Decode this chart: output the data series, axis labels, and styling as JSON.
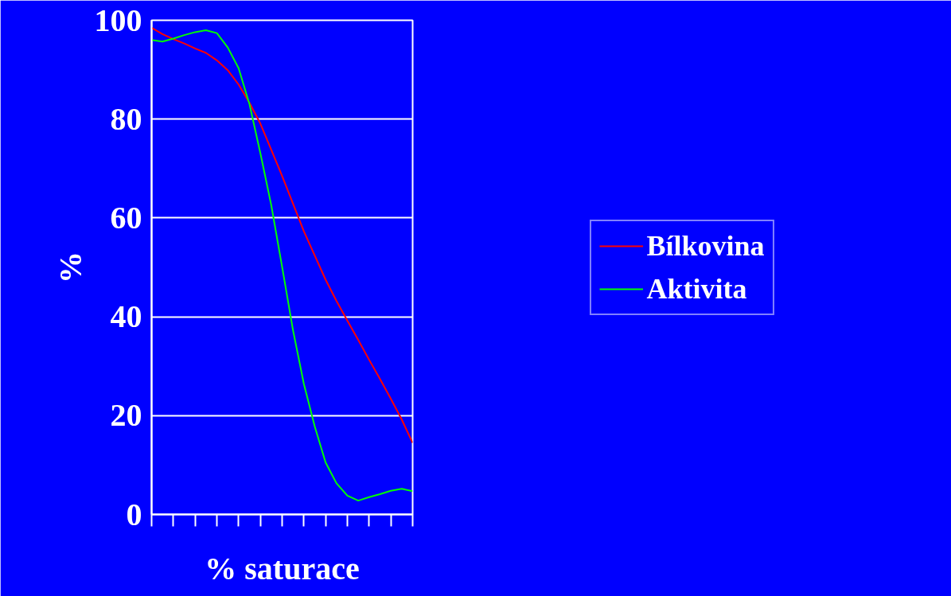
{
  "chart_data": {
    "type": "line",
    "xlabel": "% saturace",
    "ylabel": "%",
    "categories": [
      null,
      null,
      null,
      null,
      null,
      null,
      null,
      null,
      null,
      null,
      null,
      null,
      null,
      null,
      null,
      null,
      null,
      null,
      null,
      null,
      null,
      null,
      null,
      null,
      null
    ],
    "series": [
      {
        "name": "Bílkovina",
        "color": "#ff0000",
        "values": [
          98.5,
          97.2,
          96.2,
          95.3,
          94.3,
          93.4,
          91.9,
          89.9,
          87.0,
          83.3,
          79.1,
          73.8,
          68.5,
          62.9,
          57.3,
          52.4,
          47.5,
          43.2,
          39.2,
          35.3,
          31.3,
          27.4,
          23.4,
          19.2,
          14.5
        ]
      },
      {
        "name": "Aktivita",
        "color": "#00ff00",
        "values": [
          96.0,
          95.7,
          96.3,
          97.0,
          97.6,
          98.0,
          97.4,
          94.5,
          90.3,
          83.0,
          73.1,
          62.6,
          50.1,
          37.3,
          26.4,
          17.8,
          10.5,
          6.3,
          3.8,
          2.8,
          3.5,
          4.1,
          4.8,
          5.2,
          4.7
        ]
      }
    ],
    "ylim": [
      0,
      100
    ],
    "yticks": [
      0,
      20,
      40,
      60,
      80,
      100
    ],
    "grid": "y",
    "legend": "right",
    "marker": "none",
    "line_style": "solid"
  }
}
